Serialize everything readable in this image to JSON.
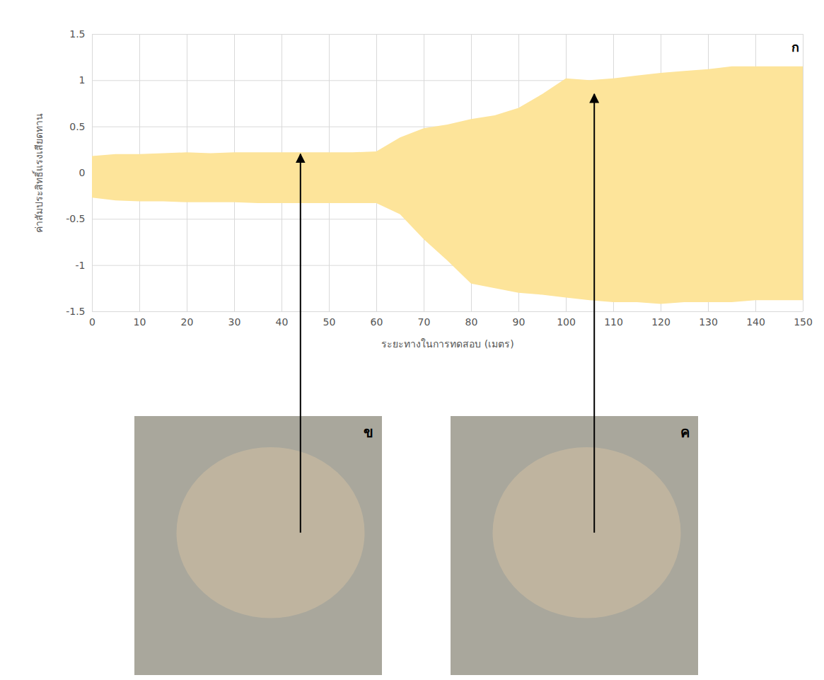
{
  "chart_data": {
    "type": "area",
    "x_label": "ระยะทางในการทดสอบ (เมตร)",
    "y_label": "ค่าสัมประสิทธิ์แรงเสียดทาน",
    "panel_label": "ก",
    "color": "#fde49a",
    "grid": true,
    "xlim": [
      0,
      150
    ],
    "ylim": [
      -1.5,
      1.5
    ],
    "xticks": [
      0,
      10,
      20,
      30,
      40,
      50,
      60,
      70,
      80,
      90,
      100,
      110,
      120,
      130,
      140,
      150
    ],
    "yticks": [
      -1.5,
      -1,
      -0.5,
      0,
      0.5,
      1,
      1.5
    ],
    "x": [
      0,
      5,
      10,
      15,
      20,
      25,
      30,
      35,
      40,
      45,
      50,
      55,
      60,
      65,
      70,
      75,
      80,
      85,
      90,
      95,
      100,
      105,
      110,
      115,
      120,
      125,
      130,
      135,
      140,
      145,
      150
    ],
    "y_upper": [
      0.18,
      0.2,
      0.2,
      0.21,
      0.22,
      0.21,
      0.22,
      0.22,
      0.22,
      0.22,
      0.22,
      0.22,
      0.23,
      0.38,
      0.48,
      0.52,
      0.58,
      0.62,
      0.7,
      0.85,
      1.02,
      1.0,
      1.02,
      1.05,
      1.08,
      1.1,
      1.12,
      1.15,
      1.15,
      1.15,
      1.15
    ],
    "y_lower": [
      -0.27,
      -0.3,
      -0.31,
      -0.31,
      -0.32,
      -0.32,
      -0.32,
      -0.33,
      -0.33,
      -0.33,
      -0.33,
      -0.33,
      -0.33,
      -0.45,
      -0.72,
      -0.95,
      -1.2,
      -1.25,
      -1.3,
      -1.32,
      -1.35,
      -1.38,
      -1.4,
      -1.4,
      -1.42,
      -1.4,
      -1.4,
      -1.4,
      -1.38,
      -1.38,
      -1.38
    ],
    "annotations": [
      {
        "label": "ข",
        "x": 44,
        "y": 0.2
      },
      {
        "label": "ค",
        "x": 106,
        "y": 0.85
      }
    ]
  }
}
